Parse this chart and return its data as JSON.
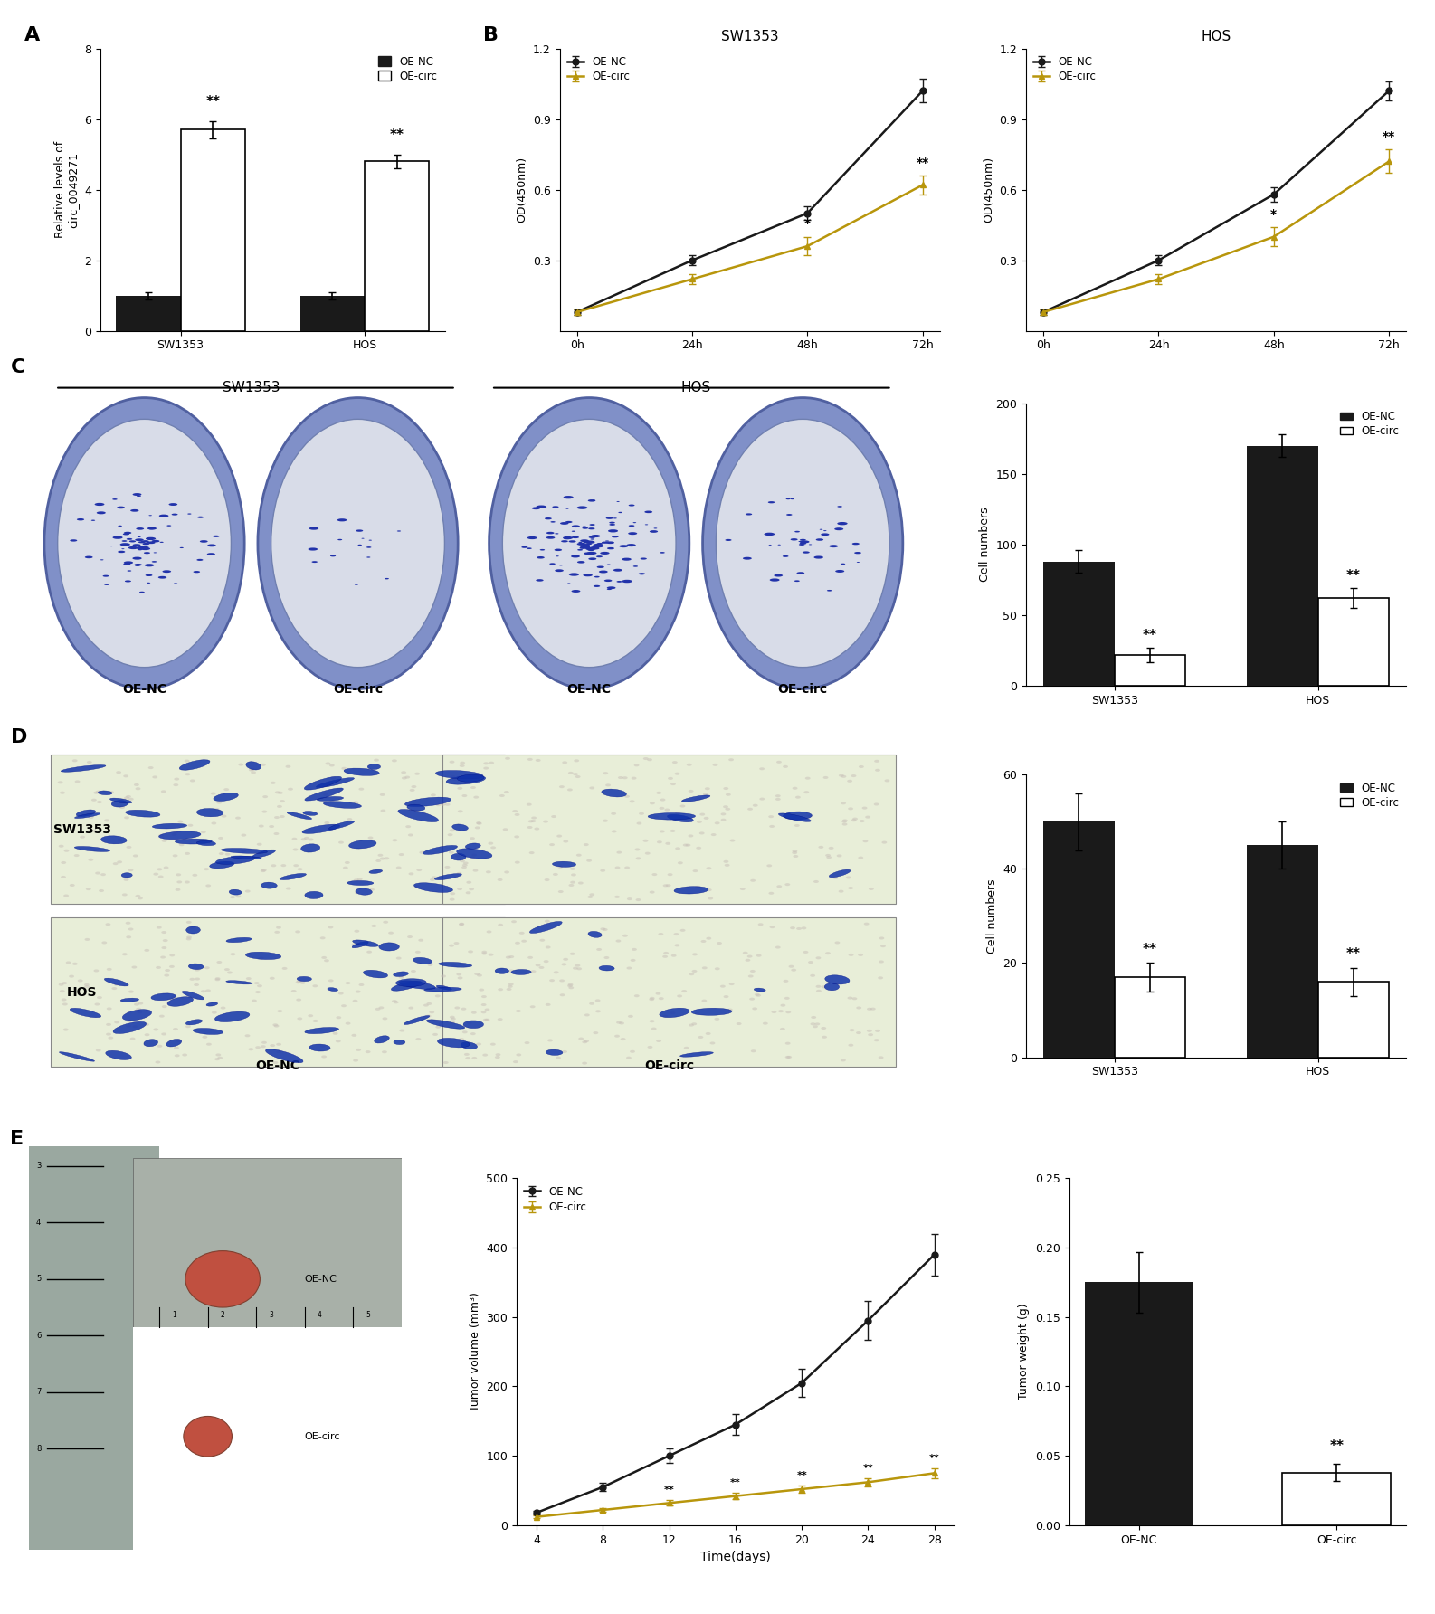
{
  "panel_A": {
    "ylabel": "Relative levels of\ncirc_0049271",
    "groups": [
      "SW1353",
      "HOS"
    ],
    "oe_nc": [
      1.0,
      1.0
    ],
    "oe_nc_err": [
      0.1,
      0.1
    ],
    "oe_circ": [
      5.7,
      4.8
    ],
    "oe_circ_err": [
      0.25,
      0.2
    ],
    "ylim": [
      0,
      8
    ],
    "yticks": [
      0,
      2,
      4,
      6,
      8
    ],
    "bar_width": 0.35,
    "sig_circ": [
      "**",
      "**"
    ]
  },
  "panel_B_SW1353": {
    "title": "SW1353",
    "ylabel": "OD(450nm)",
    "timepoints": [
      0,
      24,
      48,
      72
    ],
    "oe_nc": [
      0.08,
      0.3,
      0.5,
      1.02
    ],
    "oe_nc_err": [
      0.01,
      0.02,
      0.03,
      0.05
    ],
    "oe_circ": [
      0.08,
      0.22,
      0.36,
      0.62
    ],
    "oe_circ_err": [
      0.01,
      0.02,
      0.04,
      0.04
    ],
    "ylim": [
      0,
      1.2
    ],
    "yticks": [
      0.3,
      0.6,
      0.9,
      1.2
    ],
    "sig_48": "*",
    "sig_72": "**"
  },
  "panel_B_HOS": {
    "title": "HOS",
    "ylabel": "OD(450nm)",
    "timepoints": [
      0,
      24,
      48,
      72
    ],
    "oe_nc": [
      0.08,
      0.3,
      0.58,
      1.02
    ],
    "oe_nc_err": [
      0.01,
      0.02,
      0.03,
      0.04
    ],
    "oe_circ": [
      0.08,
      0.22,
      0.4,
      0.72
    ],
    "oe_circ_err": [
      0.01,
      0.02,
      0.04,
      0.05
    ],
    "ylim": [
      0,
      1.2
    ],
    "yticks": [
      0.3,
      0.6,
      0.9,
      1.2
    ],
    "sig_48": "*",
    "sig_72": "**"
  },
  "panel_C_bar": {
    "ylabel": "Cell numbers",
    "groups": [
      "SW1353",
      "HOS"
    ],
    "oe_nc": [
      88,
      170
    ],
    "oe_nc_err": [
      8,
      8
    ],
    "oe_circ": [
      22,
      62
    ],
    "oe_circ_err": [
      5,
      7
    ],
    "ylim": [
      0,
      200
    ],
    "yticks": [
      0,
      50,
      100,
      150,
      200
    ],
    "sig_circ": [
      "**",
      "**"
    ]
  },
  "panel_D_bar": {
    "ylabel": "Cell numbers",
    "groups": [
      "SW1353",
      "HOS"
    ],
    "oe_nc": [
      50,
      45
    ],
    "oe_nc_err": [
      6,
      5
    ],
    "oe_circ": [
      17,
      16
    ],
    "oe_circ_err": [
      3,
      3
    ],
    "ylim": [
      0,
      60
    ],
    "yticks": [
      0,
      20,
      40,
      60
    ],
    "sig_circ": [
      "**",
      "**"
    ]
  },
  "panel_E_volume": {
    "xlabel": "Time(days)",
    "ylabel": "Tumor volume (mm³)",
    "timepoints": [
      4,
      8,
      12,
      16,
      20,
      24,
      28
    ],
    "oe_nc": [
      18,
      55,
      100,
      145,
      205,
      295,
      390
    ],
    "oe_nc_err": [
      3,
      6,
      10,
      15,
      20,
      28,
      30
    ],
    "oe_circ": [
      12,
      22,
      32,
      42,
      52,
      62,
      75
    ],
    "oe_circ_err": [
      2,
      3,
      4,
      5,
      5,
      6,
      7
    ],
    "ylim": [
      0,
      500
    ],
    "yticks": [
      0,
      100,
      200,
      300,
      400,
      500
    ],
    "sig_from": 12
  },
  "panel_E_weight": {
    "ylabel": "Tumor weight (g)",
    "groups": [
      "OE-NC",
      "OE-circ"
    ],
    "oe_nc": [
      0.175
    ],
    "oe_nc_err": [
      0.022
    ],
    "oe_circ": [
      0.038
    ],
    "oe_circ_err": [
      0.006
    ],
    "ylim": [
      0,
      0.25
    ],
    "yticks": [
      0.0,
      0.05,
      0.1,
      0.15,
      0.2,
      0.25
    ]
  },
  "colors": {
    "black": "#1a1a1a",
    "gold": "#b8960c",
    "error_cap": 3,
    "line_width": 1.5,
    "marker_size": 5,
    "bar_width": 0.35,
    "colony_plate_outer": "#7a8cb8",
    "colony_plate_inner": "#c8d0e0",
    "colony_dot_nc": "#2233aa",
    "colony_dot_circ": "#4455cc",
    "transwell_bg": "#dde8cc",
    "transwell_cell_nc": "#1133aa",
    "transwell_cell_circ": "#4466bb",
    "ruler_bg": "#b0b8b0",
    "ruler_dark": "#606868",
    "tumor_color": "#c05040",
    "white_bg": "#f5f5f5"
  }
}
